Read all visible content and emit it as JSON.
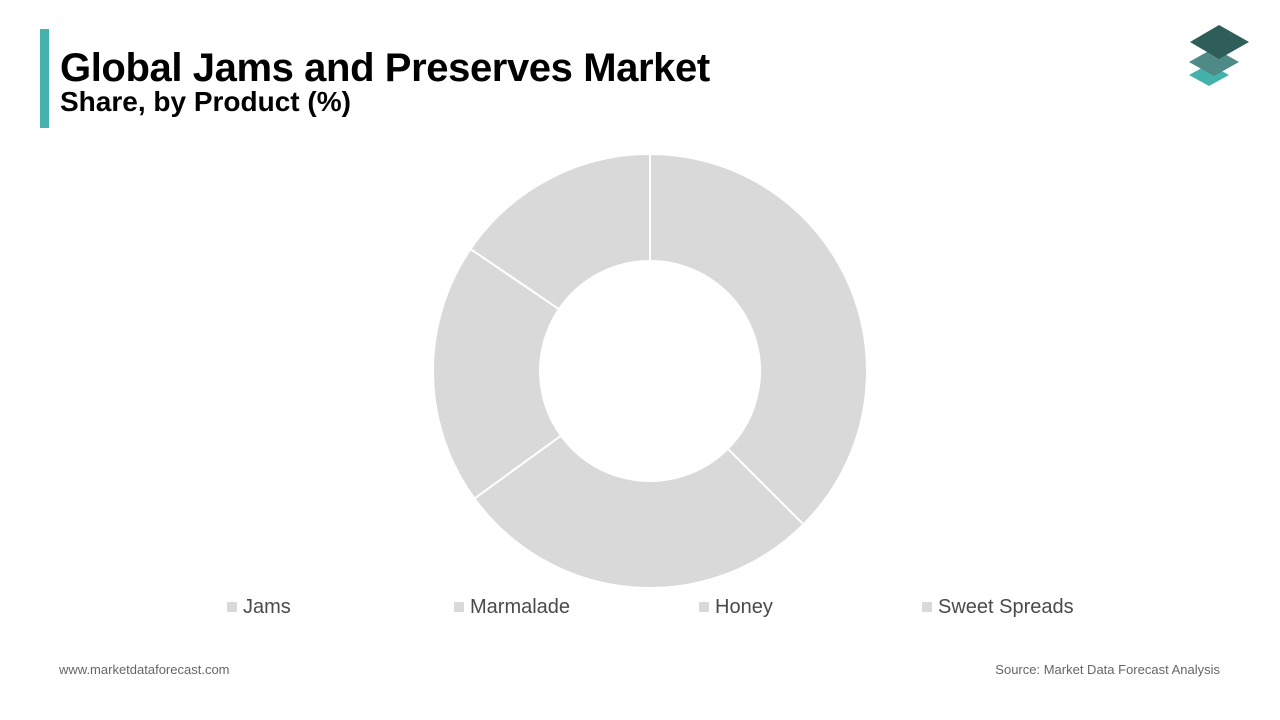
{
  "header": {
    "title": "Global Jams and Preserves Market",
    "subtitle": "Share, by Product (%)"
  },
  "colors": {
    "accent": "#45b1ab",
    "slice": "#d9d9d9",
    "slice_border": "#ffffff",
    "legend_text": "#4a4a4a",
    "footer_text": "#666666",
    "logo_top": "#2e5d5a",
    "logo_middle": "#4f8a86",
    "logo_bottom": "#45b1ab"
  },
  "logo": {
    "icon": "stacked-layers-icon"
  },
  "chart_data": {
    "type": "pie",
    "style": "donut",
    "categories": [
      "Jams",
      "Marmalade",
      "Honey",
      "Sweet Spreads"
    ],
    "values": [
      37.5,
      27.5,
      19.5,
      15.5
    ],
    "unit": "%",
    "legend_position": "bottom"
  },
  "footer": {
    "website": "www.marketdataforecast.com",
    "source": "Source: Market Data Forecast Analysis"
  }
}
